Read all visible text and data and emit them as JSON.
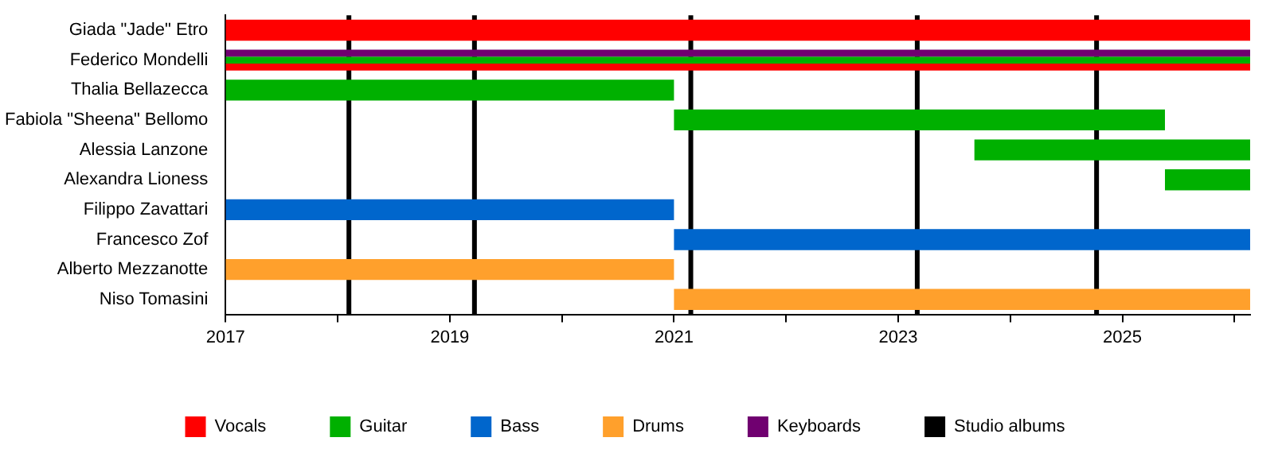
{
  "chart_data": {
    "type": "bar",
    "orientation": "horizontal",
    "categories": [
      "Giada \"Jade\" Etro",
      "Federico Mondelli",
      "Thalia Bellazecca",
      "Fabiola \"Sheena\" Bellomo",
      "Alessia Lanzone",
      "Alexandra Lioness",
      "Filippo Zavattari",
      "Francesco Zof",
      "Alberto Mezzanotte",
      "Niso Tomasini"
    ],
    "series": [
      {
        "name": "Vocals",
        "color": "#ff0000",
        "base": [
          2017,
          2017,
          null,
          null,
          null,
          null,
          null,
          null,
          null,
          null
        ],
        "values": [
          9.14,
          9.14,
          null,
          null,
          null,
          null,
          null,
          null,
          null,
          null
        ]
      },
      {
        "name": "Guitar",
        "color": "#00b000",
        "base": [
          null,
          2017,
          2017,
          2021,
          2023.68,
          2025.38,
          null,
          null,
          null,
          null
        ],
        "values": [
          null,
          9.14,
          4,
          4.38,
          2.46,
          0.76,
          null,
          null,
          null,
          null
        ]
      },
      {
        "name": "Bass",
        "color": "#0066cc",
        "base": [
          null,
          null,
          null,
          null,
          null,
          null,
          2017,
          2021,
          null,
          null
        ],
        "values": [
          null,
          null,
          null,
          null,
          null,
          null,
          4,
          5.14,
          null,
          null
        ]
      },
      {
        "name": "Drums",
        "color": "#ffa02c",
        "base": [
          null,
          null,
          null,
          null,
          null,
          null,
          null,
          null,
          2017,
          2021
        ],
        "values": [
          null,
          null,
          null,
          null,
          null,
          null,
          null,
          null,
          4,
          5.14
        ]
      },
      {
        "name": "Keyboards",
        "color": "#700070",
        "base": [
          null,
          2017,
          null,
          null,
          null,
          null,
          null,
          null,
          null,
          null
        ],
        "values": [
          null,
          9.14,
          null,
          null,
          null,
          null,
          null,
          null,
          null,
          null
        ]
      }
    ],
    "xlim": [
      2017,
      2026.14
    ],
    "xticks": [
      2017,
      {
        "value": 2018,
        "label": null
      },
      2019,
      {
        "value": 2020,
        "label": null
      },
      2021,
      {
        "value": 2022,
        "label": null
      },
      2023,
      {
        "value": 2024,
        "label": null
      },
      2025,
      {
        "value": 2026,
        "label": null
      }
    ],
    "ref_lines": [
      {
        "axis": "x",
        "value": 2018.1,
        "label": "Studio albums",
        "color": "#000000"
      },
      {
        "axis": "x",
        "value": 2019.22,
        "color": "#000000"
      },
      {
        "axis": "x",
        "value": 2021.15,
        "color": "#000000"
      },
      {
        "axis": "x",
        "value": 2023.17,
        "color": "#000000"
      },
      {
        "axis": "x",
        "value": 2024.77,
        "color": "#000000"
      }
    ],
    "grid": false,
    "legend": "bottom"
  }
}
